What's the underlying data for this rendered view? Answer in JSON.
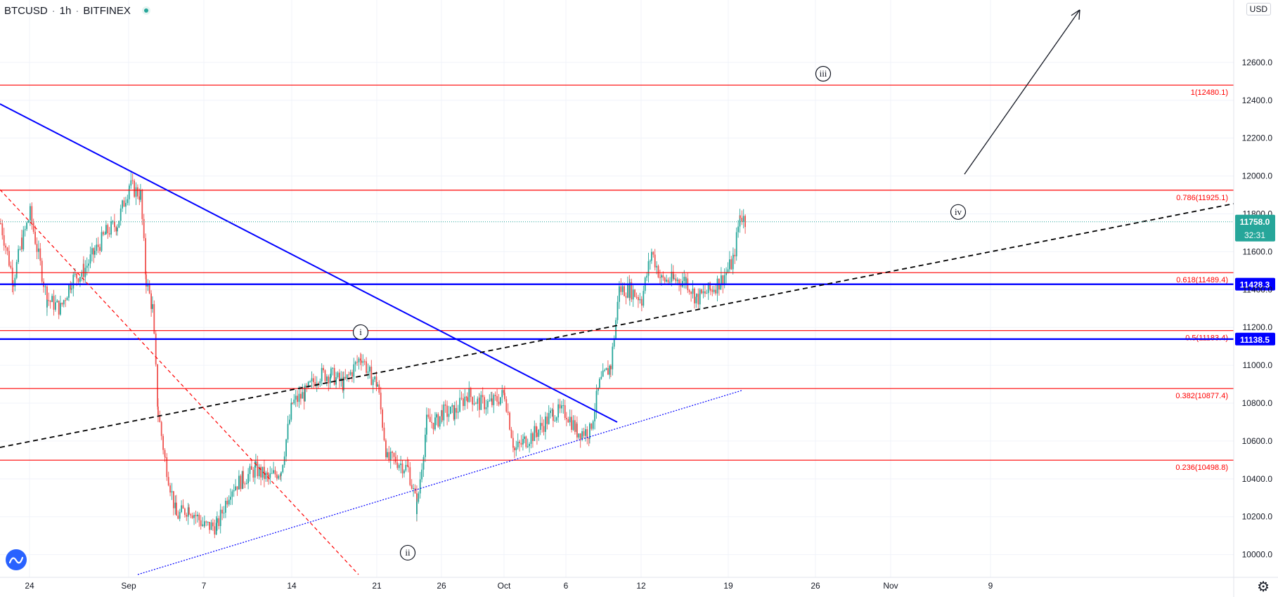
{
  "header": {
    "symbol": "BTCUSD",
    "interval": "1h",
    "exchange": "BITFINEX",
    "currency_button": "USD"
  },
  "icons": {
    "logo": "tradingview-logo-icon",
    "status": "market-status-dot-icon",
    "settings": "gear-icon"
  },
  "colors": {
    "up": "#26a69a",
    "down": "#ef5350",
    "fib": "#ff0000",
    "trend": "#0000ff",
    "dashed_trend": "#000000",
    "price_badge": "#26a69a",
    "blue_badge": "#0000ff"
  },
  "chart_data": {
    "type": "candlestick",
    "title": "BTCUSD · 1h · BITFINEX",
    "x_ticks": [
      "24",
      "Sep",
      "7",
      "14",
      "21",
      "26",
      "Oct",
      "6",
      "12",
      "19",
      "26",
      "Nov",
      "9"
    ],
    "y_ticks": [
      "12600.0",
      "12400.0",
      "12200.0",
      "12000.0",
      "11800.0",
      "11600.0",
      "11400.0",
      "11200.0",
      "11000.0",
      "10800.0",
      "10600.0",
      "10400.0",
      "10200.0",
      "10000.0"
    ],
    "ylim": [
      9880,
      12900
    ],
    "last_price": "11758.0",
    "countdown": "32:31",
    "price_path": [
      {
        "t": "Aug 21",
        "v": 11750
      },
      {
        "t": "Aug 22",
        "v": 11450
      },
      {
        "t": "Aug 23",
        "v": 11650
      },
      {
        "t": "Aug 24",
        "v": 11800
      },
      {
        "t": "Aug 25",
        "v": 11350
      },
      {
        "t": "Aug 26",
        "v": 11300
      },
      {
        "t": "Aug 27",
        "v": 11450
      },
      {
        "t": "Aug 28",
        "v": 11500
      },
      {
        "t": "Aug 29",
        "v": 11600
      },
      {
        "t": "Aug 30",
        "v": 11700
      },
      {
        "t": "Aug 31",
        "v": 11750
      },
      {
        "t": "Sep 1",
        "v": 11950
      },
      {
        "t": "Sep 2",
        "v": 11900
      },
      {
        "t": "Sep 2b",
        "v": 11450
      },
      {
        "t": "Sep 3",
        "v": 11300
      },
      {
        "t": "Sep 3b",
        "v": 10750
      },
      {
        "t": "Sep 4",
        "v": 10500
      },
      {
        "t": "Sep 5",
        "v": 10200
      },
      {
        "t": "Sep 6",
        "v": 10250
      },
      {
        "t": "Sep 7",
        "v": 10150
      },
      {
        "t": "Sep 8",
        "v": 10150
      },
      {
        "t": "Sep 9",
        "v": 10350
      },
      {
        "t": "Sep 10",
        "v": 10400
      },
      {
        "t": "Sep 11",
        "v": 10450
      },
      {
        "t": "Sep 12",
        "v": 10400
      },
      {
        "t": "Sep 13",
        "v": 10450
      },
      {
        "t": "Sep 14",
        "v": 10800
      },
      {
        "t": "Sep 15",
        "v": 10850
      },
      {
        "t": "Sep 16",
        "v": 10950
      },
      {
        "t": "Sep 17",
        "v": 10950
      },
      {
        "t": "Sep 18",
        "v": 10900
      },
      {
        "t": "Sep 19",
        "v": 11050
      },
      {
        "t": "Sep 20",
        "v": 10950
      },
      {
        "t": "Sep 21",
        "v": 10900
      },
      {
        "t": "Sep 21b",
        "v": 10500
      },
      {
        "t": "Sep 22",
        "v": 10500
      },
      {
        "t": "Sep 23",
        "v": 10450
      },
      {
        "t": "Sep 23b",
        "v": 10250
      },
      {
        "t": "Sep 24",
        "v": 10700
      },
      {
        "t": "Sep 25",
        "v": 10700
      },
      {
        "t": "Sep 26",
        "v": 10750
      },
      {
        "t": "Sep 27",
        "v": 10750
      },
      {
        "t": "Sep 28",
        "v": 10850
      },
      {
        "t": "Sep 29",
        "v": 10800
      },
      {
        "t": "Sep 30",
        "v": 10800
      },
      {
        "t": "Oct 1",
        "v": 10850
      },
      {
        "t": "Oct 2",
        "v": 10550
      },
      {
        "t": "Oct 3",
        "v": 10600
      },
      {
        "t": "Oct 4",
        "v": 10650
      },
      {
        "t": "Oct 5",
        "v": 10750
      },
      {
        "t": "Oct 6",
        "v": 10750
      },
      {
        "t": "Oct 7",
        "v": 10650
      },
      {
        "t": "Oct 8",
        "v": 10650
      },
      {
        "t": "Oct 8b",
        "v": 10900
      },
      {
        "t": "Oct 9",
        "v": 11000
      },
      {
        "t": "Oct 10",
        "v": 11400
      },
      {
        "t": "Oct 11",
        "v": 11400
      },
      {
        "t": "Oct 12",
        "v": 11350
      },
      {
        "t": "Oct 12b",
        "v": 11600
      },
      {
        "t": "Oct 13",
        "v": 11450
      },
      {
        "t": "Oct 14",
        "v": 11450
      },
      {
        "t": "Oct 15",
        "v": 11450
      },
      {
        "t": "Oct 16",
        "v": 11350
      },
      {
        "t": "Oct 17",
        "v": 11400
      },
      {
        "t": "Oct 18",
        "v": 11450
      },
      {
        "t": "Oct 19",
        "v": 11550
      },
      {
        "t": "Oct 20",
        "v": 11800
      },
      {
        "t": "Oct 20b",
        "v": 11758
      }
    ],
    "fib_levels": [
      {
        "label": "1(12480.1)",
        "price": 12480.1
      },
      {
        "label": "0.786(11925.1)",
        "price": 11925.1
      },
      {
        "label": "0.618(11489.4)",
        "price": 11489.4
      },
      {
        "label": "0.5(11183.4)",
        "price": 11183.4
      },
      {
        "label": "0.382(10877.4)",
        "price": 10877.4
      },
      {
        "label": "0.236(10498.8)",
        "price": 10498.8
      }
    ],
    "horizontal_lines": [
      {
        "label": "11428.3",
        "price": 11428.3
      },
      {
        "label": "11138.5",
        "price": 11138.5
      }
    ],
    "wave_labels": [
      {
        "label": "i",
        "t": "Sep 19",
        "price": 11175
      },
      {
        "label": "ii",
        "t": "Sep 23",
        "price": 10010
      },
      {
        "label": "iii",
        "t": "Oct 26",
        "price": 12540
      },
      {
        "label": "iv",
        "t": "Nov 3",
        "price": 11810
      }
    ]
  }
}
